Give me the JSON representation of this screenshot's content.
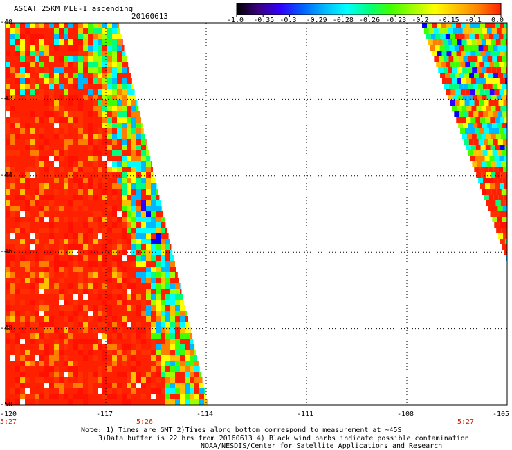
{
  "header": {
    "title": "ASCAT 25KM MLE-1 ascending",
    "date": "20160613"
  },
  "colorbar": {
    "ticks": [
      "-1.0",
      "-0.35",
      "-0.3",
      "-0.29",
      "-0.28",
      "-0.26",
      "-0.23",
      "-0.2",
      "-0.15",
      "-0.1",
      "0.0"
    ],
    "colors": [
      "#000000",
      "#3a0080",
      "#3000ff",
      "#0060ff",
      "#00b8ff",
      "#00ffff",
      "#00ff80",
      "#40ff00",
      "#a0ff00",
      "#ffff00",
      "#ffc000",
      "#ff8000",
      "#ff2000"
    ]
  },
  "map": {
    "lat_ticks": [
      "-40",
      "-42",
      "-44",
      "-46",
      "-48",
      "-50"
    ],
    "lon_ticks": [
      "-120",
      "-117",
      "-114",
      "-111",
      "-108",
      "-105"
    ],
    "lat_range": [
      -50,
      -40
    ],
    "lon_range": [
      -120,
      -105
    ],
    "times": [
      {
        "label": "5:27",
        "lon": -120
      },
      {
        "label": "5:26",
        "lon": -115.8
      },
      {
        "label": "5:27",
        "lon": -106.2
      }
    ]
  },
  "notes": {
    "line1": "Note: 1) Times are GMT 2)Times along bottom correspond to measurement at ~45S",
    "line2": "3)Data buffer is 22 hrs from 20160613 4) Black wind barbs indicate possible contamination",
    "line3": "NOAA/NESDIS/Center for Satellite Applications and Research"
  }
}
